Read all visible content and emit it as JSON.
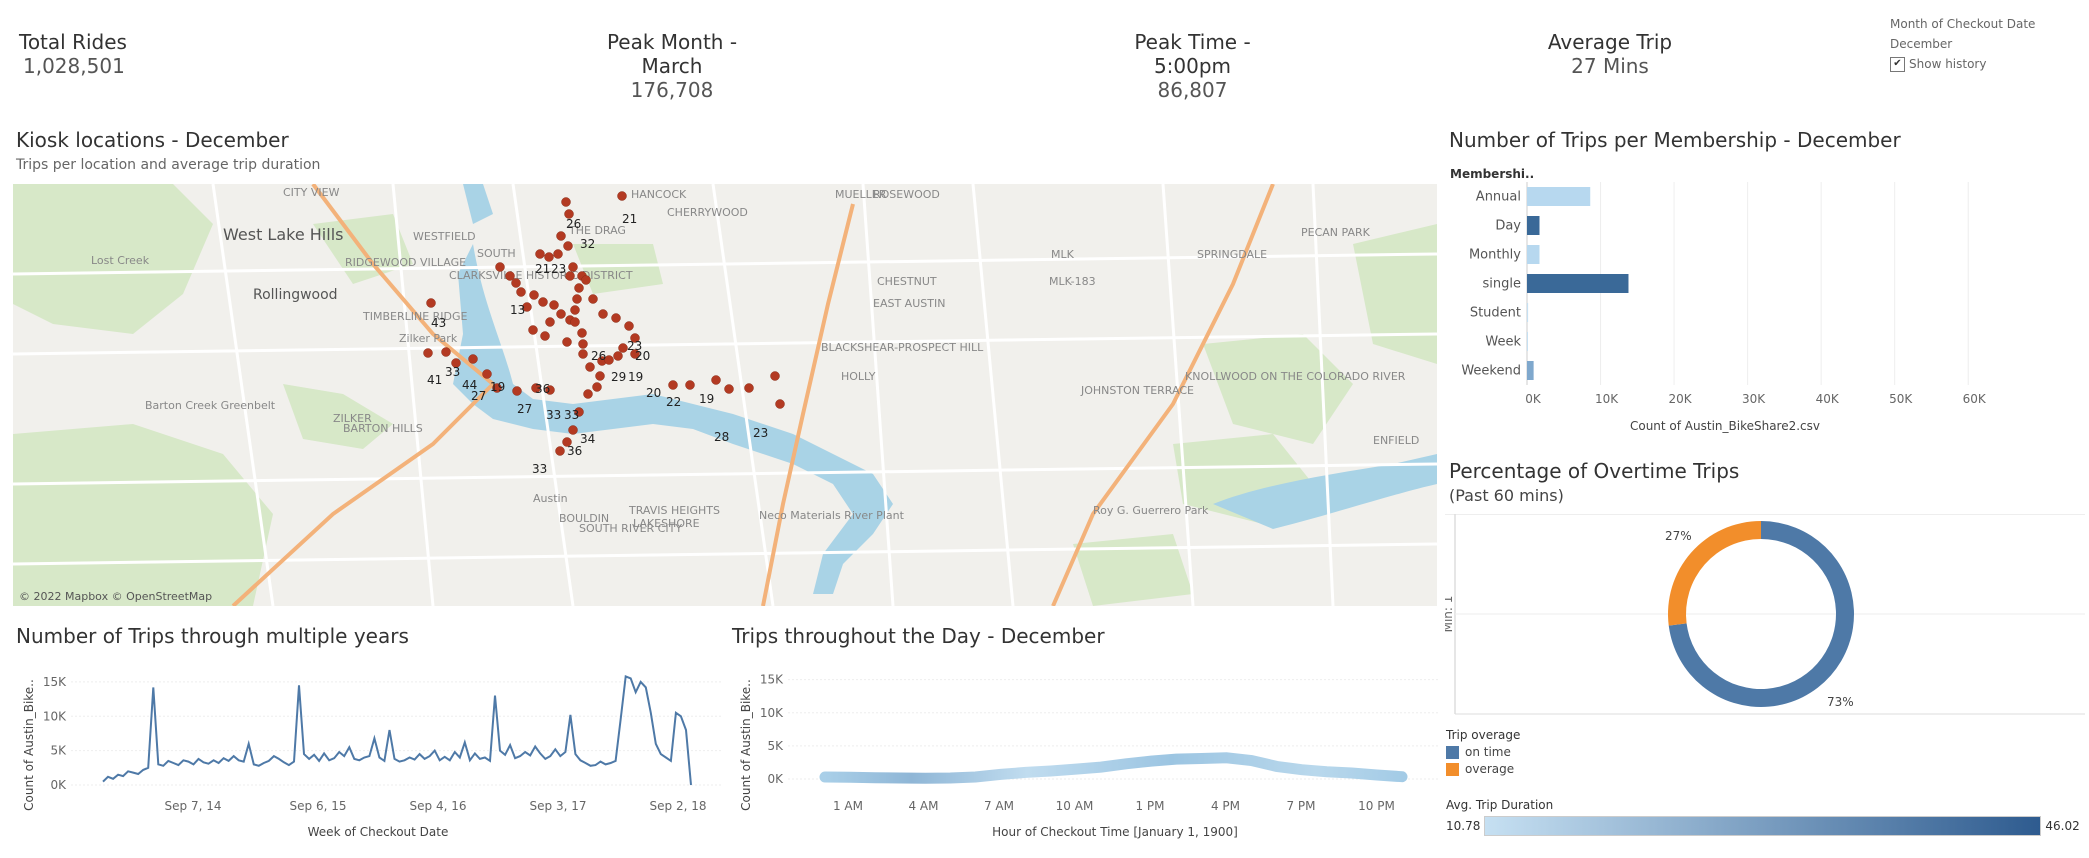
{
  "kpis": [
    {
      "title": "Total Rides",
      "value": "1,028,501"
    },
    {
      "title": "Peak Month - March",
      "value": "176,708"
    },
    {
      "title": "Peak Time - 5:00pm",
      "value": "86,807"
    },
    {
      "title": "Average Trip",
      "value": "27 Mins"
    }
  ],
  "filter": {
    "label": "Month of Checkout Date",
    "value": "December",
    "show_history": "Show history"
  },
  "map": {
    "title": "Kiosk locations - December",
    "subtitle": "Trips per location and average trip duration",
    "attribution": "© 2022 Mapbox © OpenStreetMap",
    "place_labels": [
      "West Lake Hills",
      "Rollingwood",
      "Lost Creek",
      "CITY VIEW",
      "WESTFIELD",
      "RIDGEWOOD VILLAGE",
      "TIMBERLINE RIDGE",
      "Zilker Park",
      "Barton Creek Greenbelt",
      "BARTON HILLS",
      "ZILKER",
      "CLARKSVILLE HISTORIC DISTRICT",
      "THE DRAG",
      "HANCOCK",
      "CHERRYWOOD",
      "MUELLER",
      "ROSEWOOD",
      "EAST AUSTIN",
      "CHESTNUT",
      "MLK",
      "MLK-183",
      "SPRINGDALE",
      "PECAN PARK",
      "BLACKSHEAR-PROSPECT HILL",
      "HOLLY",
      "JOHNSTON TERRACE",
      "KNOLLWOOD ON THE COLORADO RIVER",
      "Roy G. Guerrero Park",
      "LAKESHORE",
      "TRAVIS HEIGHTS",
      "BOULDIN",
      "SOUTH RIVER CITY",
      "Austin",
      "Neco Materials River Plant",
      "ENFIELD",
      "SOUTH"
    ],
    "kiosk_labels": [
      "26",
      "21",
      "32",
      "21",
      "23",
      "43",
      "13",
      "23",
      "20",
      "26",
      "29",
      "19",
      "41",
      "33",
      "44",
      "27",
      "19",
      "27",
      "36",
      "33",
      "33",
      "20",
      "22",
      "19",
      "28",
      "23",
      "34",
      "36",
      "33"
    ]
  },
  "membership": {
    "title": "Number of Trips per Membership - December",
    "column_header": "Membershi..",
    "xlabel": "Count of Austin_BikeShare2.csv",
    "categories": [
      "Annual",
      "Day",
      "Monthly",
      "single",
      "Student",
      "Week",
      "Weekend"
    ],
    "values": [
      8600,
      1700,
      1700,
      13800,
      150,
      50,
      900
    ],
    "ticks": [
      "0K",
      "10K",
      "20K",
      "30K",
      "40K",
      "50K",
      "60K"
    ]
  },
  "years_chart": {
    "title": "Number of Trips through multiple years",
    "ylabel": "Count of Austin_Bike..",
    "xlabel": "Week of Checkout Date",
    "yticks": [
      "0K",
      "5K",
      "10K",
      "15K"
    ],
    "xticks": [
      "Sep 7, 14",
      "Sep 6, 15",
      "Sep 4, 16",
      "Sep 3, 17",
      "Sep 2, 18"
    ]
  },
  "day_chart": {
    "title": "Trips throughout the Day - December",
    "ylabel": "Count of Austin_Bike..",
    "xlabel": "Hour of Checkout Time [January 1, 1900]",
    "yticks": [
      "0K",
      "5K",
      "10K",
      "15K"
    ],
    "xticks": [
      "1 AM",
      "4 AM",
      "7 AM",
      "10 AM",
      "1 PM",
      "4 PM",
      "7 PM",
      "10 PM"
    ]
  },
  "overtime": {
    "title": "Percentage of Overtime Trips",
    "subtitle": "(Past 60 mins)",
    "axis_label": "Min: 1",
    "slices": [
      {
        "name": "on time",
        "pct": 73,
        "label": "73%"
      },
      {
        "name": "overage",
        "pct": 27,
        "label": "27%"
      }
    ],
    "legend_title": "Trip overage",
    "colors": {
      "on_time": "#4e79a7",
      "overage": "#f28e2b"
    }
  },
  "avg_trip": {
    "title": "Avg. Trip Duration",
    "min": "10.78",
    "max": "46.02"
  },
  "chart_data": [
    {
      "type": "bar",
      "title": "Number of Trips per Membership - December",
      "categories": [
        "Annual",
        "Day",
        "Monthly",
        "single",
        "Student",
        "Week",
        "Weekend"
      ],
      "values": [
        8600,
        1700,
        1700,
        13800,
        150,
        50,
        900
      ],
      "xlabel": "Count of Austin_BikeShare2.csv",
      "ylabel": "Membershi..",
      "xlim": [
        0,
        65000
      ]
    },
    {
      "type": "line",
      "title": "Number of Trips through multiple years",
      "xlabel": "Week of Checkout Date",
      "ylabel": "Count of Austin_Bike..",
      "ylim": [
        0,
        16000
      ],
      "values": [
        500,
        1200,
        900,
        1500,
        1300,
        2000,
        1800,
        1600,
        2200,
        2500,
        14200,
        3000,
        2800,
        3500,
        3200,
        2900,
        3600,
        3400,
        3000,
        3800,
        3300,
        3100,
        3600,
        3200,
        3900,
        3500,
        4200,
        3600,
        3400,
        6000,
        3000,
        2800,
        3200,
        3500,
        4200,
        3800,
        3300,
        2900,
        3400,
        14500,
        4500,
        3800,
        4400,
        3500,
        4600,
        3600,
        3900,
        4800,
        4200,
        5500,
        3800,
        3600,
        4000,
        4200,
        6800,
        4000,
        3500,
        8000,
        3800,
        3400,
        3600,
        4000,
        3700,
        4500,
        3800,
        4200,
        5000,
        3600,
        4100,
        3600,
        4800,
        4000,
        6200,
        3600,
        4600,
        3800,
        4000,
        3500,
        13000,
        5000,
        4400,
        5800,
        3900,
        4200,
        4800,
        4300,
        5600,
        4600,
        3800,
        4200,
        5200,
        4200,
        4800,
        10200,
        4500,
        3600,
        3200,
        2800,
        2900,
        3400,
        3000,
        3200,
        3500,
        9500,
        15800,
        15500,
        13500,
        15000,
        14200,
        10500,
        6000,
        4500,
        4000,
        3500,
        10500,
        10000,
        8000,
        0
      ]
    },
    {
      "type": "area",
      "title": "Trips throughout the Day - December",
      "x": [
        "0",
        "1",
        "2",
        "3",
        "4",
        "5",
        "6",
        "7",
        "8",
        "9",
        "10",
        "11",
        "12",
        "13",
        "14",
        "15",
        "16",
        "17",
        "18",
        "19",
        "20",
        "21",
        "22",
        "23"
      ],
      "values": [
        300,
        250,
        200,
        150,
        100,
        150,
        300,
        700,
        1000,
        1200,
        1500,
        1800,
        2300,
        2700,
        3000,
        3100,
        3200,
        2800,
        1900,
        1400,
        1100,
        900,
        600,
        350
      ],
      "xlabel": "Hour of Checkout Time [January 1, 1900]",
      "ylabel": "Count of Austin_Bike..",
      "ylim": [
        0,
        16000
      ]
    },
    {
      "type": "pie",
      "title": "Percentage of Overtime Trips",
      "categories": [
        "on time",
        "overage"
      ],
      "values": [
        73,
        27
      ]
    }
  ]
}
